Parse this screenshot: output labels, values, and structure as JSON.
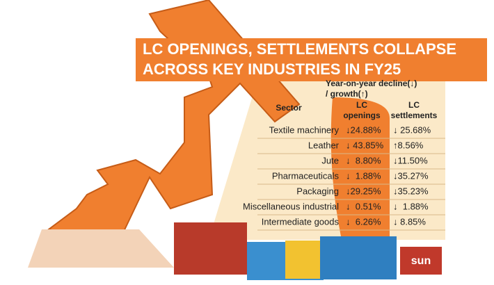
{
  "header": {
    "title_lines": [
      "LC OPENINGS, SETTLEMENTS COLLAPSE",
      "ACROSS KEY INDUSTRIES IN FY25"
    ]
  },
  "legend": {
    "lines": [
      "Year-on-year decline(↓)",
      "/ growth(↑)"
    ]
  },
  "table": {
    "columns": [
      [
        "Sector"
      ],
      [
        "LC",
        "openings"
      ],
      [
        "LC",
        "settlements"
      ]
    ],
    "rows": [
      [
        "Textile machinery",
        "↓24.88%",
        "↓ 25.68%"
      ],
      [
        "Leather",
        "↓ 43.85%",
        "↑8.56%"
      ],
      [
        "Jute",
        "↓  8.80%",
        "↓11.50%"
      ],
      [
        "Pharmaceuticals",
        "↓  1.88%",
        "↓35.27%"
      ],
      [
        "Packaging",
        "↓29.25%",
        "↓35.23%"
      ],
      [
        "Miscellaneous industrial",
        "↓  0.51%",
        "↓  1.88%"
      ],
      [
        "Intermediate goods",
        "↓  6.26%",
        "↓ 8.85%"
      ]
    ]
  },
  "logo": "sun"
}
